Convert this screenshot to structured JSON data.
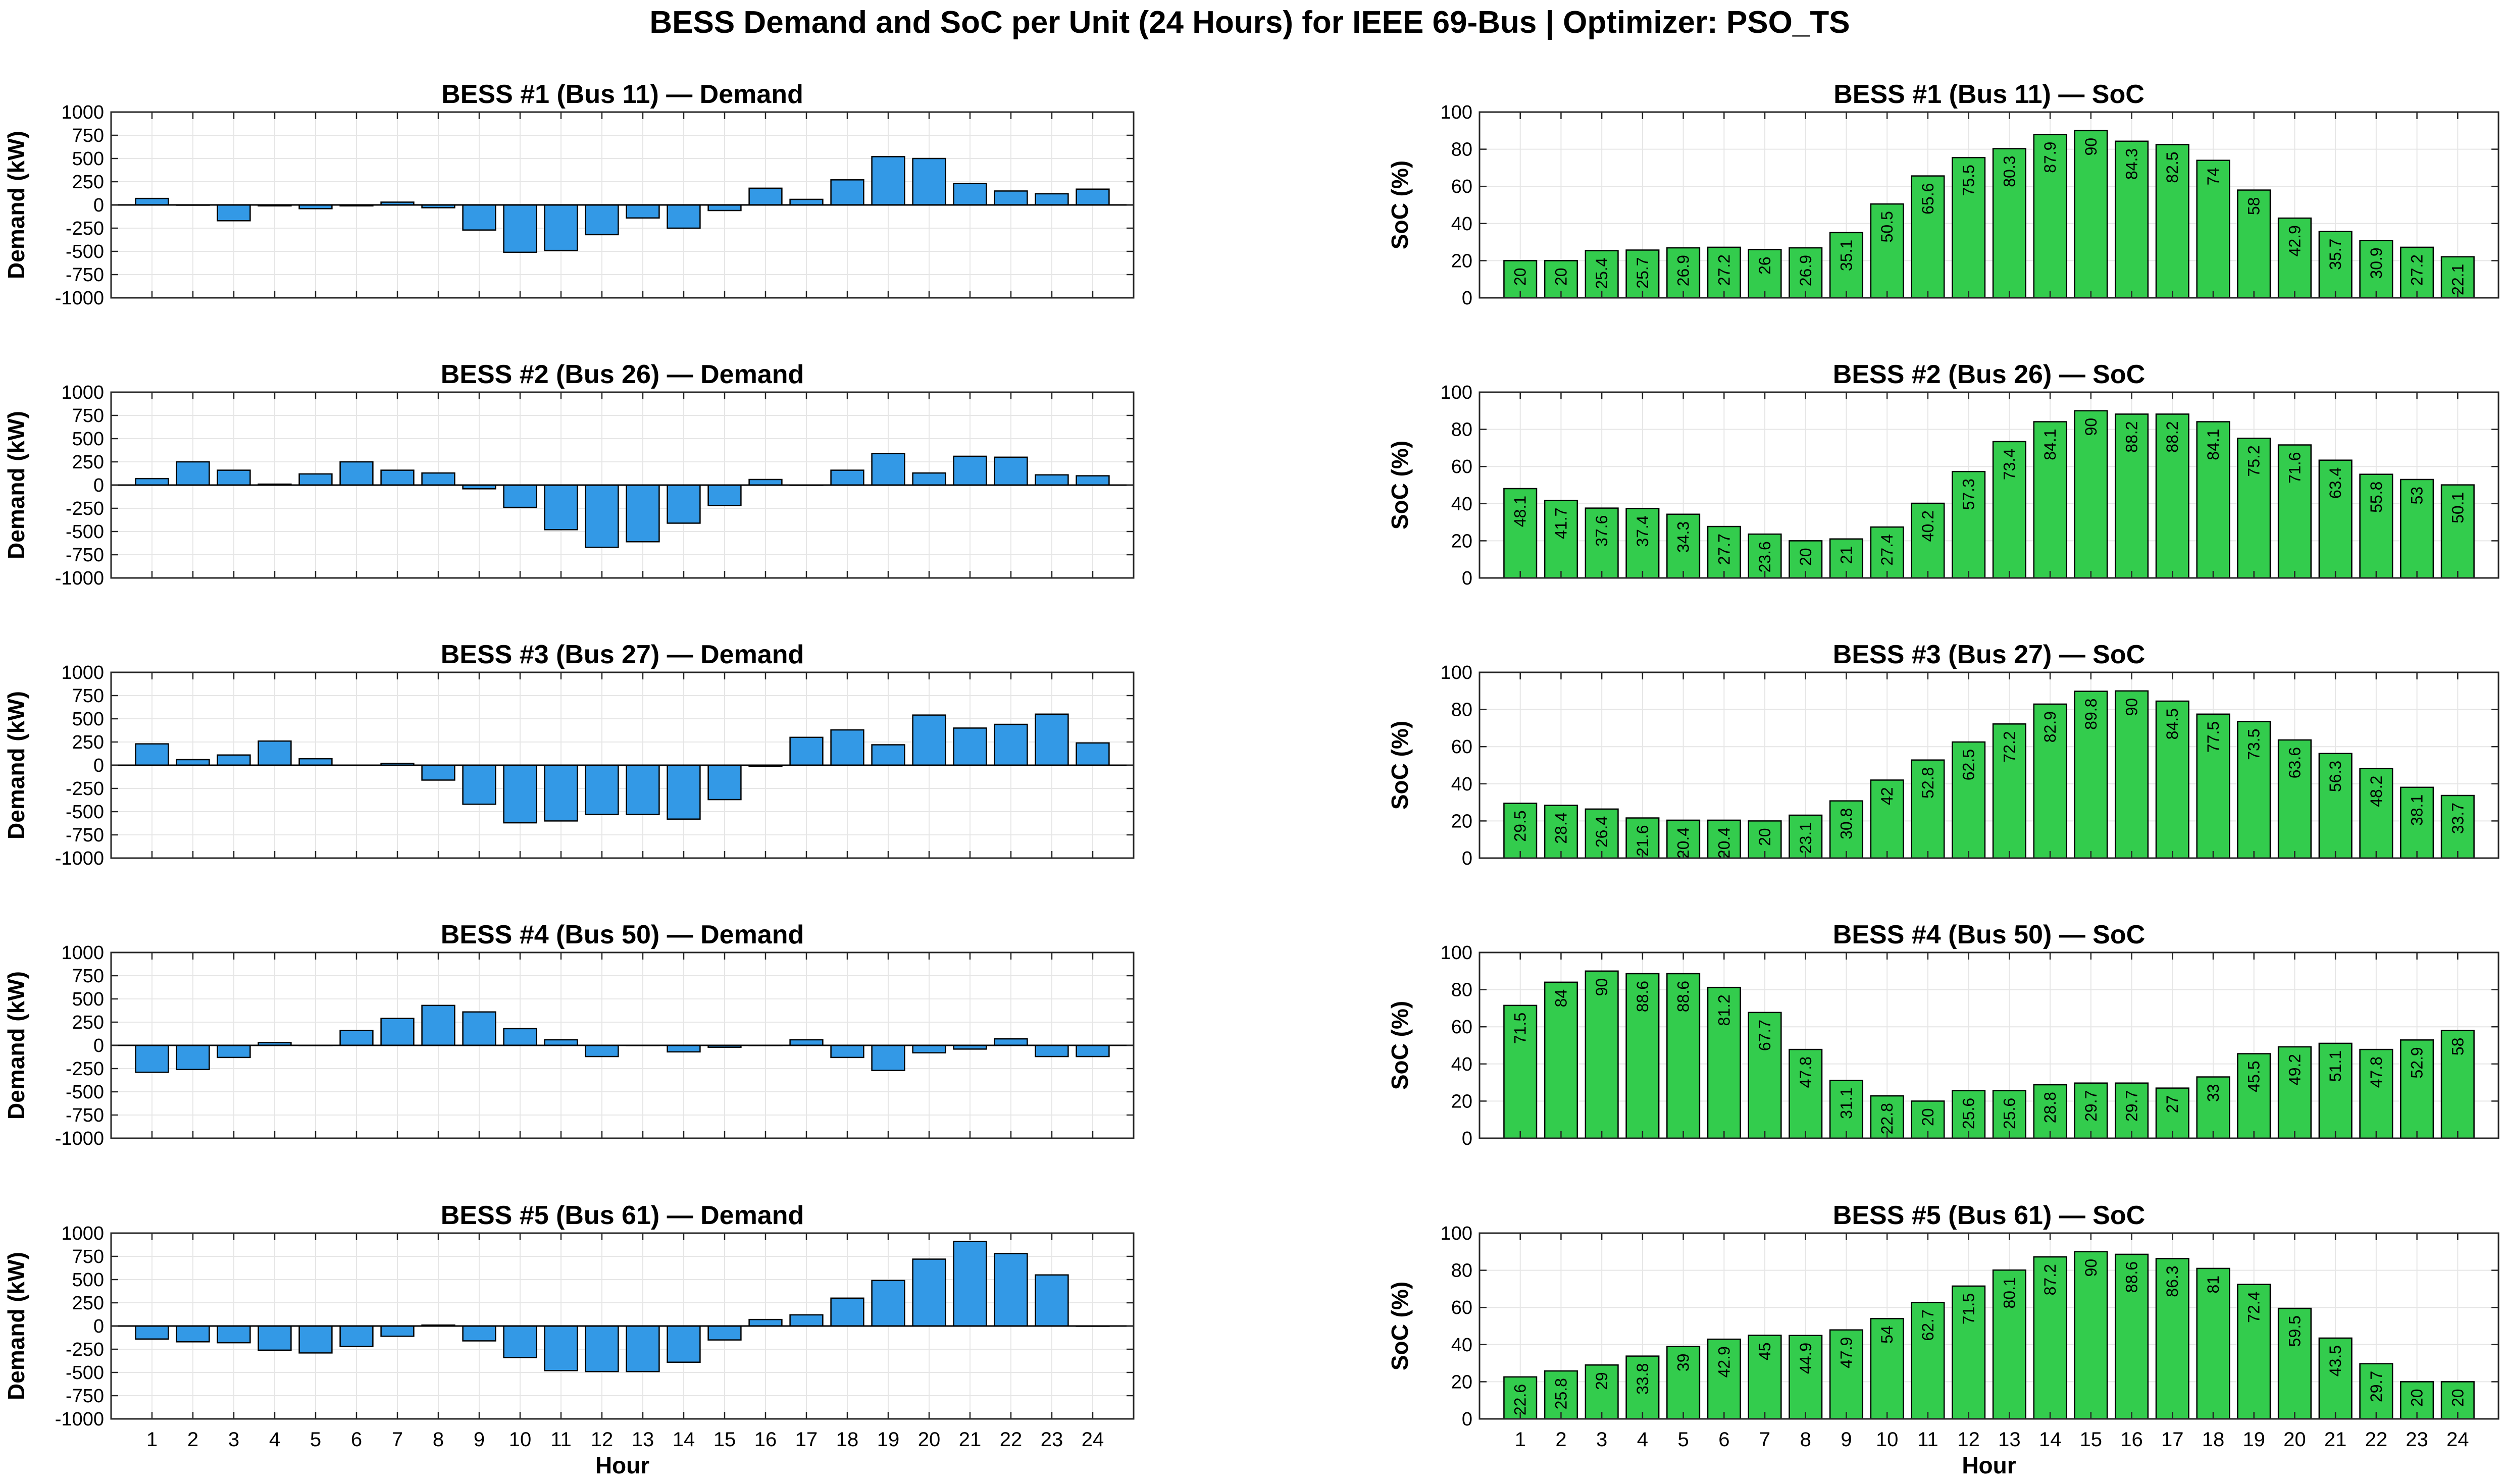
{
  "figure_title": "BESS Demand and SoC per Unit (24 Hours) for IEEE 69-Bus | Optimizer: PSO_TS",
  "colors": {
    "demand_bar": "#3399e6",
    "soc_bar": "#33cc4d",
    "edge": "#000000",
    "grid": "#e6e6e6"
  },
  "chart_data": [
    {
      "type": "bar",
      "title": "BESS #1 (Bus 11) — Demand",
      "xlabel": "",
      "ylabel": "Demand (kW)",
      "ylim": [
        -1000,
        1000
      ],
      "yticks": [
        1000,
        750,
        500,
        250,
        0,
        -250,
        -500,
        -750,
        -1000
      ],
      "categories": [
        "1",
        "2",
        "3",
        "4",
        "5",
        "6",
        "7",
        "8",
        "9",
        "10",
        "11",
        "12",
        "13",
        "14",
        "15",
        "16",
        "17",
        "18",
        "19",
        "20",
        "21",
        "22",
        "23",
        "24"
      ],
      "values": [
        70,
        0,
        -170,
        -10,
        -40,
        -10,
        30,
        -30,
        -270,
        -510,
        -490,
        -320,
        -140,
        -250,
        -60,
        180,
        60,
        270,
        520,
        500,
        230,
        150,
        120,
        170
      ],
      "grid": true,
      "show_xticklabels": false
    },
    {
      "type": "bar",
      "title": "BESS #1 (Bus 11) — SoC",
      "xlabel": "",
      "ylabel": "SoC (%)",
      "ylim": [
        0,
        100
      ],
      "yticks": [
        100,
        80,
        60,
        40,
        20,
        0
      ],
      "categories": [
        "1",
        "2",
        "3",
        "4",
        "5",
        "6",
        "7",
        "8",
        "9",
        "10",
        "11",
        "12",
        "13",
        "14",
        "15",
        "16",
        "17",
        "18",
        "19",
        "20",
        "21",
        "22",
        "23",
        "24"
      ],
      "values": [
        20,
        20,
        25.4,
        25.7,
        26.9,
        27.2,
        26,
        26.9,
        35.1,
        50.5,
        65.6,
        75.5,
        80.3,
        87.9,
        90,
        84.3,
        82.5,
        74,
        58,
        42.9,
        35.7,
        30.9,
        27.2,
        22.1
      ],
      "labels": [
        "20",
        "20",
        "25.4",
        "25.7",
        "26.9",
        "27.2",
        "26",
        "26.9",
        "35.1",
        "50.5",
        "65.6",
        "75.5",
        "80.3",
        "87.9",
        "90",
        "84.3",
        "82.5",
        "74",
        "58",
        "42.9",
        "35.7",
        "30.9",
        "27.2",
        "22.1"
      ],
      "grid": true,
      "show_xticklabels": false
    },
    {
      "type": "bar",
      "title": "BESS #2 (Bus 26) — Demand",
      "xlabel": "",
      "ylabel": "Demand (kW)",
      "ylim": [
        -1000,
        1000
      ],
      "yticks": [
        1000,
        750,
        500,
        250,
        0,
        -250,
        -500,
        -750,
        -1000
      ],
      "categories": [
        "1",
        "2",
        "3",
        "4",
        "5",
        "6",
        "7",
        "8",
        "9",
        "10",
        "11",
        "12",
        "13",
        "14",
        "15",
        "16",
        "17",
        "18",
        "19",
        "20",
        "21",
        "22",
        "23",
        "24"
      ],
      "values": [
        70,
        250,
        160,
        10,
        120,
        250,
        160,
        130,
        -40,
        -240,
        -480,
        -670,
        -610,
        -410,
        -220,
        60,
        0,
        160,
        340,
        130,
        310,
        300,
        110,
        100
      ],
      "grid": true,
      "show_xticklabels": false
    },
    {
      "type": "bar",
      "title": "BESS #2 (Bus 26) — SoC",
      "xlabel": "",
      "ylabel": "SoC (%)",
      "ylim": [
        0,
        100
      ],
      "yticks": [
        100,
        80,
        60,
        40,
        20,
        0
      ],
      "categories": [
        "1",
        "2",
        "3",
        "4",
        "5",
        "6",
        "7",
        "8",
        "9",
        "10",
        "11",
        "12",
        "13",
        "14",
        "15",
        "16",
        "17",
        "18",
        "19",
        "20",
        "21",
        "22",
        "23",
        "24"
      ],
      "values": [
        48.1,
        41.7,
        37.6,
        37.4,
        34.3,
        27.7,
        23.6,
        20,
        21,
        27.4,
        40.2,
        57.3,
        73.4,
        84.1,
        90,
        88.2,
        88.2,
        84.1,
        75.2,
        71.6,
        63.4,
        55.8,
        53,
        50.1
      ],
      "labels": [
        "48.1",
        "41.7",
        "37.6",
        "37.4",
        "34.3",
        "27.7",
        "23.6",
        "20",
        "21",
        "27.4",
        "40.2",
        "57.3",
        "73.4",
        "84.1",
        "90",
        "88.2",
        "88.2",
        "84.1",
        "75.2",
        "71.6",
        "63.4",
        "55.8",
        "53",
        "50.1"
      ],
      "grid": true,
      "show_xticklabels": false
    },
    {
      "type": "bar",
      "title": "BESS #3 (Bus 27) — Demand",
      "xlabel": "",
      "ylabel": "Demand (kW)",
      "ylim": [
        -1000,
        1000
      ],
      "yticks": [
        1000,
        750,
        500,
        250,
        0,
        -250,
        -500,
        -750,
        -1000
      ],
      "categories": [
        "1",
        "2",
        "3",
        "4",
        "5",
        "6",
        "7",
        "8",
        "9",
        "10",
        "11",
        "12",
        "13",
        "14",
        "15",
        "16",
        "17",
        "18",
        "19",
        "20",
        "21",
        "22",
        "23",
        "24"
      ],
      "values": [
        230,
        60,
        110,
        260,
        70,
        0,
        20,
        -160,
        -420,
        -620,
        -600,
        -530,
        -530,
        -580,
        -370,
        -10,
        300,
        380,
        220,
        540,
        400,
        440,
        550,
        240
      ],
      "grid": true,
      "show_xticklabels": false
    },
    {
      "type": "bar",
      "title": "BESS #3 (Bus 27) — SoC",
      "xlabel": "",
      "ylabel": "SoC (%)",
      "ylim": [
        0,
        100
      ],
      "yticks": [
        100,
        80,
        60,
        40,
        20,
        0
      ],
      "categories": [
        "1",
        "2",
        "3",
        "4",
        "5",
        "6",
        "7",
        "8",
        "9",
        "10",
        "11",
        "12",
        "13",
        "14",
        "15",
        "16",
        "17",
        "18",
        "19",
        "20",
        "21",
        "22",
        "23",
        "24"
      ],
      "values": [
        29.5,
        28.4,
        26.4,
        21.6,
        20.4,
        20.4,
        20,
        23.1,
        30.8,
        42,
        52.8,
        62.5,
        72.2,
        82.9,
        89.8,
        90,
        84.5,
        77.5,
        73.5,
        63.6,
        56.3,
        48.2,
        38.1,
        33.7
      ],
      "labels": [
        "29.5",
        "28.4",
        "26.4",
        "21.6",
        "20.4",
        "20.4",
        "20",
        "23.1",
        "30.8",
        "42",
        "52.8",
        "62.5",
        "72.2",
        "82.9",
        "89.8",
        "90",
        "84.5",
        "77.5",
        "73.5",
        "63.6",
        "56.3",
        "48.2",
        "38.1",
        "33.7"
      ],
      "grid": true,
      "show_xticklabels": false
    },
    {
      "type": "bar",
      "title": "BESS #4 (Bus 50) — Demand",
      "xlabel": "",
      "ylabel": "Demand (kW)",
      "ylim": [
        -1000,
        1000
      ],
      "yticks": [
        1000,
        750,
        500,
        250,
        0,
        -250,
        -500,
        -750,
        -1000
      ],
      "categories": [
        "1",
        "2",
        "3",
        "4",
        "5",
        "6",
        "7",
        "8",
        "9",
        "10",
        "11",
        "12",
        "13",
        "14",
        "15",
        "16",
        "17",
        "18",
        "19",
        "20",
        "21",
        "22",
        "23",
        "24"
      ],
      "values": [
        -290,
        -260,
        -130,
        30,
        0,
        160,
        290,
        430,
        360,
        180,
        60,
        -120,
        0,
        -70,
        -20,
        0,
        60,
        -130,
        -270,
        -80,
        -40,
        70,
        -120,
        -120
      ],
      "grid": true,
      "show_xticklabels": false
    },
    {
      "type": "bar",
      "title": "BESS #4 (Bus 50) — SoC",
      "xlabel": "",
      "ylabel": "SoC (%)",
      "ylim": [
        0,
        100
      ],
      "yticks": [
        100,
        80,
        60,
        40,
        20,
        0
      ],
      "categories": [
        "1",
        "2",
        "3",
        "4",
        "5",
        "6",
        "7",
        "8",
        "9",
        "10",
        "11",
        "12",
        "13",
        "14",
        "15",
        "16",
        "17",
        "18",
        "19",
        "20",
        "21",
        "22",
        "23",
        "24"
      ],
      "values": [
        71.5,
        84,
        90,
        88.6,
        88.6,
        81.2,
        67.7,
        47.8,
        31.1,
        22.8,
        20,
        25.6,
        25.6,
        28.8,
        29.7,
        29.7,
        27,
        33,
        45.5,
        49.2,
        51.1,
        47.8,
        52.9,
        58
      ],
      "labels": [
        "71.5",
        "84",
        "90",
        "88.6",
        "88.6",
        "81.2",
        "67.7",
        "47.8",
        "31.1",
        "22.8",
        "20",
        "25.6",
        "25.6",
        "28.8",
        "29.7",
        "29.7",
        "27",
        "33",
        "45.5",
        "49.2",
        "51.1",
        "47.8",
        "52.9",
        "58"
      ],
      "grid": true,
      "show_xticklabels": false
    },
    {
      "type": "bar",
      "title": "BESS #5 (Bus 61) — Demand",
      "xlabel": "Hour",
      "ylabel": "Demand (kW)",
      "ylim": [
        -1000,
        1000
      ],
      "yticks": [
        1000,
        750,
        500,
        250,
        0,
        -250,
        -500,
        -750,
        -1000
      ],
      "categories": [
        "1",
        "2",
        "3",
        "4",
        "5",
        "6",
        "7",
        "8",
        "9",
        "10",
        "11",
        "12",
        "13",
        "14",
        "15",
        "16",
        "17",
        "18",
        "19",
        "20",
        "21",
        "22",
        "23",
        "24"
      ],
      "values": [
        -140,
        -170,
        -180,
        -260,
        -290,
        -220,
        -110,
        10,
        -160,
        -340,
        -480,
        -490,
        -490,
        -390,
        -150,
        70,
        120,
        300,
        490,
        720,
        910,
        780,
        550,
        0
      ],
      "grid": true,
      "show_xticklabels": true
    },
    {
      "type": "bar",
      "title": "BESS #5 (Bus 61) — SoC",
      "xlabel": "Hour",
      "ylabel": "SoC (%)",
      "ylim": [
        0,
        100
      ],
      "yticks": [
        100,
        80,
        60,
        40,
        20,
        0
      ],
      "categories": [
        "1",
        "2",
        "3",
        "4",
        "5",
        "6",
        "7",
        "8",
        "9",
        "10",
        "11",
        "12",
        "13",
        "14",
        "15",
        "16",
        "17",
        "18",
        "19",
        "20",
        "21",
        "22",
        "23",
        "24"
      ],
      "values": [
        22.6,
        25.8,
        29,
        33.8,
        39,
        42.9,
        45,
        44.9,
        47.9,
        54,
        62.7,
        71.5,
        80.1,
        87.2,
        90,
        88.6,
        86.3,
        81,
        72.4,
        59.5,
        43.5,
        29.7,
        20,
        20
      ],
      "labels": [
        "22.6",
        "25.8",
        "29",
        "33.8",
        "39",
        "42.9",
        "45",
        "44.9",
        "47.9",
        "54",
        "62.7",
        "71.5",
        "80.1",
        "87.2",
        "90",
        "88.6",
        "86.3",
        "81",
        "72.4",
        "59.5",
        "43.5",
        "29.7",
        "20",
        "20"
      ],
      "grid": true,
      "show_xticklabels": true
    }
  ]
}
